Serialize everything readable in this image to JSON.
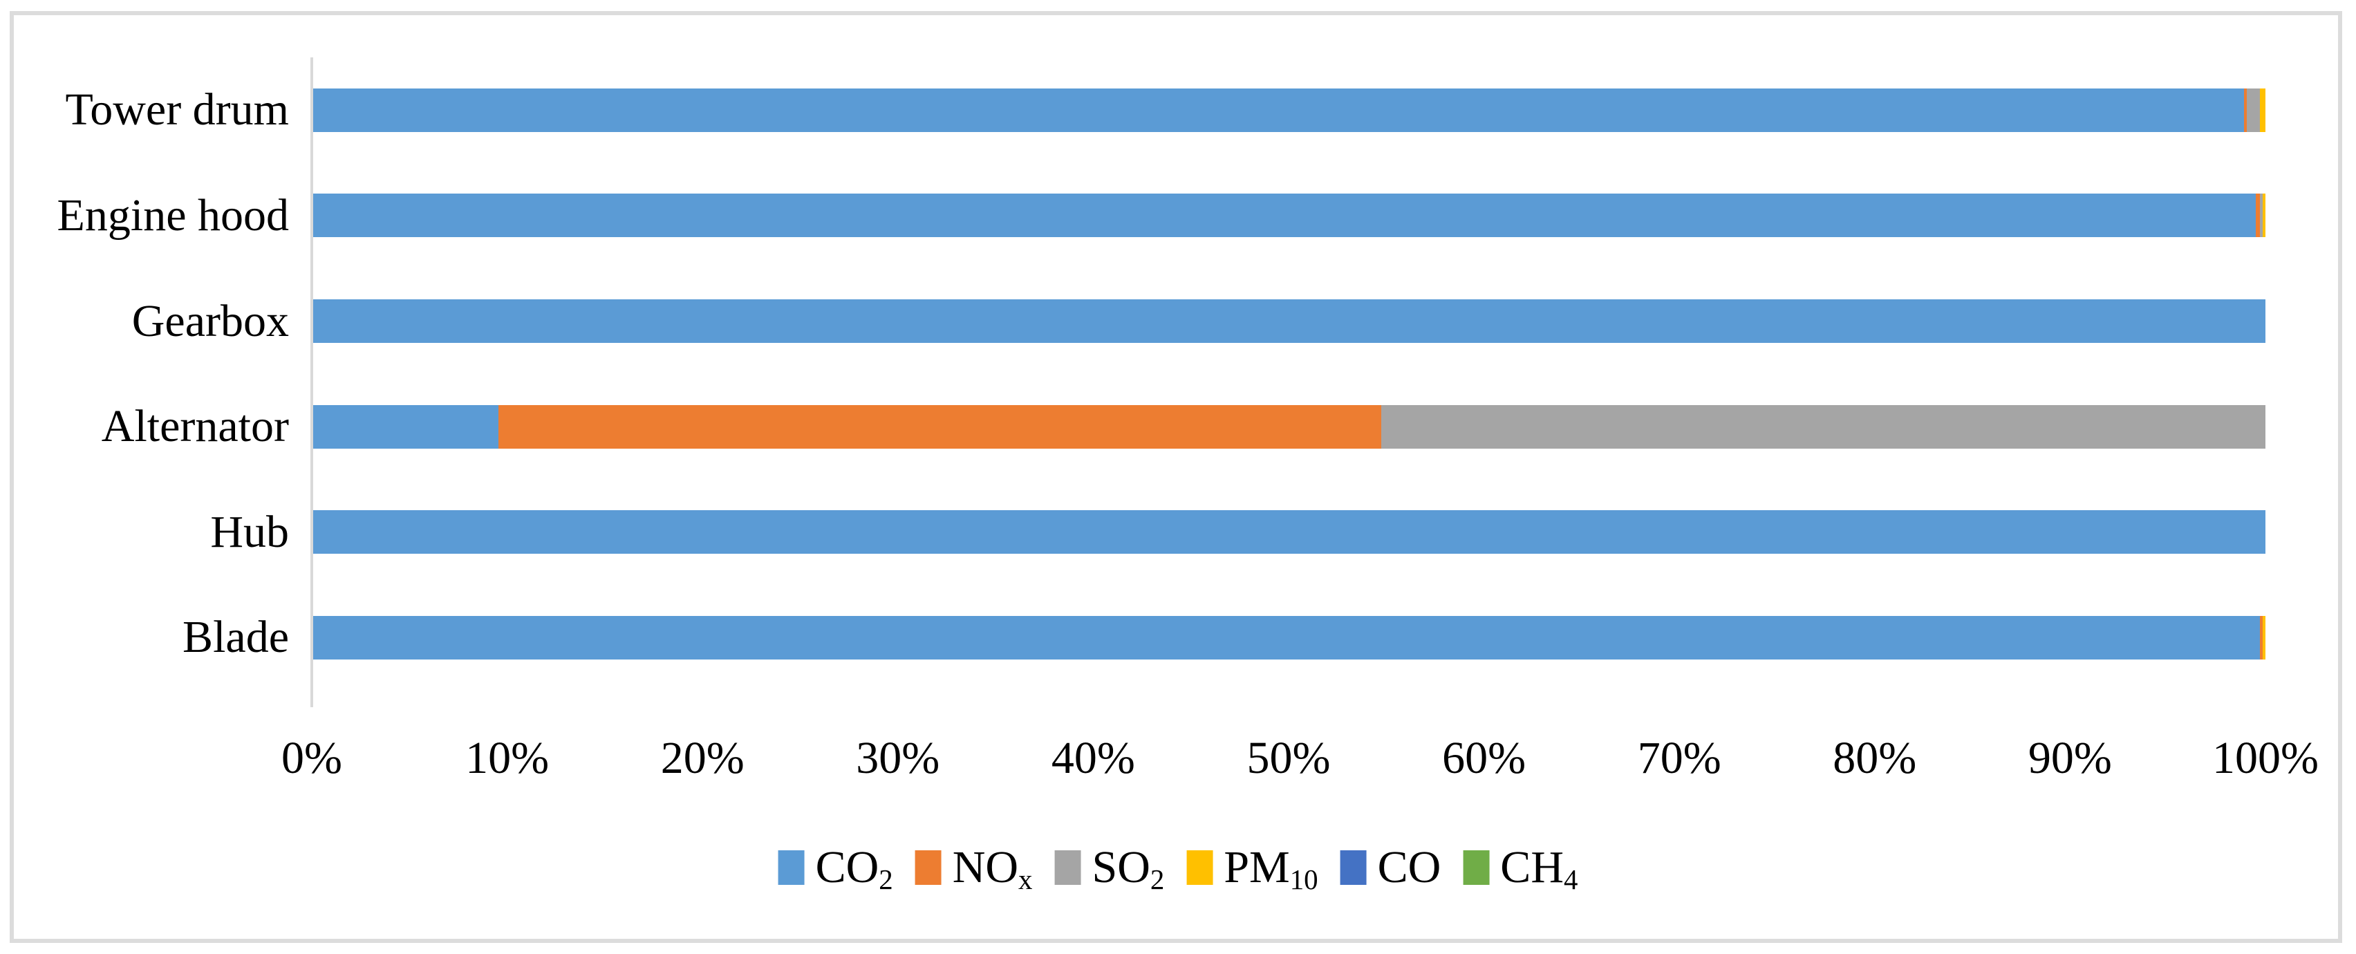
{
  "chart_data": {
    "type": "bar",
    "variant": "horizontal-stacked-100-percent",
    "title": "",
    "categories": [
      "Tower drum",
      "Engine hood",
      "Gearbox",
      "Alternator",
      "Hub",
      "Blade"
    ],
    "series": [
      {
        "name": "CO2",
        "label_base": "CO",
        "label_sub": "2",
        "color": "#5B9BD5",
        "values": [
          98.9,
          99.5,
          100,
          9.5,
          100,
          99.7
        ]
      },
      {
        "name": "NOx",
        "label_base": "NO",
        "label_sub": "x",
        "color": "#ED7D31",
        "values": [
          0.15,
          0.2,
          0,
          45.2,
          0,
          0.15
        ]
      },
      {
        "name": "SO2",
        "label_base": "SO",
        "label_sub": "2",
        "color": "#A5A5A5",
        "values": [
          0.65,
          0.15,
          0,
          45.3,
          0,
          0
        ]
      },
      {
        "name": "PM10",
        "label_base": "PM",
        "label_sub": "10",
        "color": "#FFC000",
        "values": [
          0.3,
          0.15,
          0,
          0,
          0,
          0.15
        ]
      },
      {
        "name": "CO",
        "label_base": "CO",
        "label_sub": "",
        "color": "#4472C4",
        "values": [
          0,
          0,
          0,
          0,
          0,
          0
        ]
      },
      {
        "name": "CH4",
        "label_base": "CH",
        "label_sub": "4",
        "color": "#70AD47",
        "values": [
          0,
          0,
          0,
          0,
          0,
          0
        ]
      }
    ],
    "x_ticks": [
      "0%",
      "10%",
      "20%",
      "30%",
      "40%",
      "50%",
      "60%",
      "70%",
      "80%",
      "90%",
      "100%"
    ],
    "xlim": [
      0,
      100
    ],
    "grid": false,
    "legend_position": "bottom"
  },
  "colors": {
    "background": "#FFFFFF",
    "frame_border": "#DCDCDC",
    "axis_line": "#D9D9D9",
    "text": "#000000"
  }
}
